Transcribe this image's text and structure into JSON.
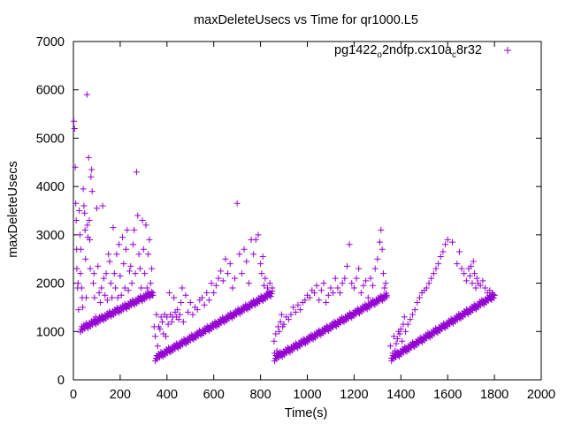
{
  "chart_data": {
    "type": "scatter",
    "title": "maxDeleteUsecs vs Time for qr1000.L5",
    "xlabel": "Time(s)",
    "ylabel": "maxDeleteUsecs",
    "xlim": [
      0,
      2000
    ],
    "ylim": [
      0,
      7000
    ],
    "xticks": [
      0,
      200,
      400,
      600,
      800,
      1000,
      1200,
      1400,
      1600,
      1800,
      2000
    ],
    "yticks": [
      0,
      1000,
      2000,
      3000,
      4000,
      5000,
      6000,
      7000
    ],
    "grid": false,
    "legend_position": "top-right",
    "series": [
      {
        "name_parts": {
          "a": "pg1422",
          "b": "o",
          "c": "2nofp.cx10a",
          "d": "c",
          "e": "8r32"
        },
        "name": "pg1422_o2nofp.cx10a_c8r32",
        "marker": "+",
        "color": "#9400d3",
        "points": [
          [
            2,
            5350
          ],
          [
            5,
            5200
          ],
          [
            8,
            4400
          ],
          [
            10,
            3650
          ],
          [
            12,
            3300
          ],
          [
            14,
            2700
          ],
          [
            15,
            2300
          ],
          [
            18,
            1900
          ],
          [
            20,
            2000
          ],
          [
            22,
            1450
          ],
          [
            25,
            3500
          ],
          [
            28,
            3000
          ],
          [
            30,
            2200
          ],
          [
            32,
            2700
          ],
          [
            35,
            1900
          ],
          [
            38,
            1700
          ],
          [
            40,
            1500
          ],
          [
            42,
            3950
          ],
          [
            45,
            3600
          ],
          [
            48,
            3450
          ],
          [
            50,
            3100
          ],
          [
            52,
            2500
          ],
          [
            55,
            1700
          ],
          [
            58,
            5900
          ],
          [
            60,
            3200
          ],
          [
            62,
            2950
          ],
          [
            65,
            4600
          ],
          [
            68,
            3300
          ],
          [
            70,
            2900
          ],
          [
            72,
            2300
          ],
          [
            75,
            4200
          ],
          [
            78,
            4350
          ],
          [
            80,
            3900
          ],
          [
            85,
            2000
          ],
          [
            88,
            2200
          ],
          [
            90,
            1700
          ],
          [
            95,
            1300
          ],
          [
            100,
            3550
          ],
          [
            105,
            2350
          ],
          [
            110,
            1800
          ],
          [
            115,
            1600
          ],
          [
            120,
            1900
          ],
          [
            125,
            3600
          ],
          [
            130,
            2100
          ],
          [
            135,
            1750
          ],
          [
            140,
            2200
          ],
          [
            145,
            1650
          ],
          [
            150,
            2600
          ],
          [
            155,
            2450
          ],
          [
            160,
            2000
          ],
          [
            165,
            1700
          ],
          [
            170,
            3150
          ],
          [
            175,
            2200
          ],
          [
            180,
            1900
          ],
          [
            185,
            2600
          ],
          [
            190,
            1700
          ],
          [
            195,
            2800
          ],
          [
            200,
            2150
          ],
          [
            205,
            1750
          ],
          [
            210,
            2950
          ],
          [
            215,
            2400
          ],
          [
            220,
            1900
          ],
          [
            225,
            2700
          ],
          [
            230,
            3100
          ],
          [
            235,
            1850
          ],
          [
            240,
            2250
          ],
          [
            245,
            2350
          ],
          [
            250,
            2000
          ],
          [
            255,
            2800
          ],
          [
            260,
            3100
          ],
          [
            265,
            2200
          ],
          [
            270,
            4300
          ],
          [
            275,
            3400
          ],
          [
            280,
            2600
          ],
          [
            285,
            2300
          ],
          [
            290,
            1900
          ],
          [
            295,
            3300
          ],
          [
            300,
            2700
          ],
          [
            305,
            2200
          ],
          [
            310,
            3200
          ],
          [
            315,
            1900
          ],
          [
            320,
            2600
          ],
          [
            325,
            2900
          ],
          [
            330,
            2000
          ],
          [
            335,
            2300
          ],
          [
            340,
            1800
          ],
          [
            340,
            1750
          ],
          [
            345,
            1100
          ],
          [
            350,
            900
          ],
          [
            355,
            1350
          ],
          [
            360,
            700
          ],
          [
            365,
            1100
          ],
          [
            370,
            1050
          ],
          [
            375,
            1300
          ],
          [
            380,
            1200
          ],
          [
            385,
            950
          ],
          [
            390,
            1350
          ],
          [
            395,
            900
          ],
          [
            400,
            1300
          ],
          [
            405,
            1150
          ],
          [
            410,
            1800
          ],
          [
            415,
            1350
          ],
          [
            420,
            1200
          ],
          [
            425,
            1300
          ],
          [
            430,
            1700
          ],
          [
            435,
            1400
          ],
          [
            440,
            1300
          ],
          [
            445,
            1450
          ],
          [
            450,
            1250
          ],
          [
            455,
            1350
          ],
          [
            460,
            1600
          ],
          [
            465,
            1900
          ],
          [
            470,
            1200
          ],
          [
            480,
            1750
          ],
          [
            490,
            1400
          ],
          [
            500,
            1600
          ],
          [
            510,
            1350
          ],
          [
            520,
            1500
          ],
          [
            530,
            1450
          ],
          [
            540,
            1650
          ],
          [
            550,
            1700
          ],
          [
            560,
            1550
          ],
          [
            570,
            1800
          ],
          [
            580,
            1650
          ],
          [
            590,
            2000
          ],
          [
            600,
            1800
          ],
          [
            610,
            1950
          ],
          [
            620,
            2100
          ],
          [
            630,
            2250
          ],
          [
            640,
            2050
          ],
          [
            650,
            2500
          ],
          [
            660,
            2200
          ],
          [
            670,
            2400
          ],
          [
            680,
            1900
          ],
          [
            690,
            2100
          ],
          [
            700,
            3650
          ],
          [
            710,
            2600
          ],
          [
            720,
            2200
          ],
          [
            730,
            2700
          ],
          [
            740,
            2450
          ],
          [
            750,
            2000
          ],
          [
            760,
            2900
          ],
          [
            770,
            2600
          ],
          [
            780,
            2900
          ],
          [
            790,
            3000
          ],
          [
            800,
            2400
          ],
          [
            805,
            2200
          ],
          [
            810,
            2550
          ],
          [
            815,
            1950
          ],
          [
            820,
            2100
          ],
          [
            830,
            1900
          ],
          [
            840,
            2000
          ],
          [
            850,
            1900
          ],
          [
            858,
            800
          ],
          [
            860,
            550
          ],
          [
            865,
            950
          ],
          [
            870,
            600
          ],
          [
            875,
            1100
          ],
          [
            880,
            1000
          ],
          [
            885,
            1200
          ],
          [
            890,
            1350
          ],
          [
            895,
            1100
          ],
          [
            900,
            1150
          ],
          [
            910,
            1300
          ],
          [
            920,
            1250
          ],
          [
            930,
            1350
          ],
          [
            940,
            1500
          ],
          [
            950,
            1400
          ],
          [
            960,
            1550
          ],
          [
            970,
            1450
          ],
          [
            980,
            1600
          ],
          [
            990,
            1650
          ],
          [
            1000,
            1750
          ],
          [
            1010,
            1700
          ],
          [
            1020,
            1850
          ],
          [
            1030,
            1800
          ],
          [
            1040,
            1950
          ],
          [
            1050,
            1650
          ],
          [
            1060,
            1850
          ],
          [
            1070,
            2000
          ],
          [
            1080,
            1600
          ],
          [
            1090,
            1750
          ],
          [
            1100,
            1900
          ],
          [
            1110,
            1800
          ],
          [
            1120,
            2100
          ],
          [
            1130,
            1900
          ],
          [
            1140,
            1800
          ],
          [
            1150,
            2000
          ],
          [
            1160,
            2100
          ],
          [
            1170,
            2350
          ],
          [
            1180,
            2800
          ],
          [
            1190,
            2000
          ],
          [
            1200,
            1900
          ],
          [
            1210,
            2100
          ],
          [
            1220,
            2300
          ],
          [
            1230,
            1800
          ],
          [
            1240,
            1950
          ],
          [
            1250,
            2050
          ],
          [
            1260,
            1700
          ],
          [
            1270,
            2100
          ],
          [
            1280,
            1950
          ],
          [
            1290,
            2300
          ],
          [
            1300,
            2500
          ],
          [
            1310,
            2850
          ],
          [
            1315,
            3100
          ],
          [
            1320,
            2700
          ],
          [
            1325,
            2200
          ],
          [
            1330,
            1900
          ],
          [
            1335,
            2000
          ],
          [
            1340,
            1750
          ],
          [
            1355,
            700
          ],
          [
            1360,
            450
          ],
          [
            1365,
            550
          ],
          [
            1370,
            900
          ],
          [
            1375,
            600
          ],
          [
            1380,
            750
          ],
          [
            1385,
            850
          ],
          [
            1390,
            1000
          ],
          [
            1395,
            950
          ],
          [
            1400,
            1050
          ],
          [
            1405,
            800
          ],
          [
            1410,
            1150
          ],
          [
            1415,
            1300
          ],
          [
            1420,
            1000
          ],
          [
            1430,
            1150
          ],
          [
            1440,
            1250
          ],
          [
            1450,
            1350
          ],
          [
            1460,
            1450
          ],
          [
            1470,
            1600
          ],
          [
            1480,
            1700
          ],
          [
            1490,
            1800
          ],
          [
            1500,
            1850
          ],
          [
            1510,
            1900
          ],
          [
            1520,
            2000
          ],
          [
            1530,
            2100
          ],
          [
            1540,
            2200
          ],
          [
            1550,
            2300
          ],
          [
            1560,
            2400
          ],
          [
            1570,
            2550
          ],
          [
            1580,
            2650
          ],
          [
            1590,
            2800
          ],
          [
            1600,
            2900
          ],
          [
            1620,
            2850
          ],
          [
            1640,
            2400
          ],
          [
            1650,
            2650
          ],
          [
            1660,
            2300
          ],
          [
            1670,
            2200
          ],
          [
            1680,
            2050
          ],
          [
            1690,
            2300
          ],
          [
            1695,
            2150
          ],
          [
            1700,
            2350
          ],
          [
            1705,
            2000
          ],
          [
            1710,
            2450
          ],
          [
            1715,
            2200
          ],
          [
            1720,
            1900
          ],
          [
            1725,
            2100
          ],
          [
            1730,
            2000
          ],
          [
            1740,
            1950
          ],
          [
            1750,
            2050
          ],
          [
            1760,
            1900
          ],
          [
            1770,
            1800
          ],
          [
            1780,
            1850
          ],
          [
            1790,
            1800
          ],
          [
            1800,
            1750
          ]
        ],
        "trend_segments": [
          {
            "x0": 30,
            "x1": 340,
            "y0": 1050,
            "y1": 1800
          },
          {
            "x0": 350,
            "x1": 850,
            "y0": 450,
            "y1": 1800
          },
          {
            "x0": 860,
            "x1": 1340,
            "y0": 450,
            "y1": 1750
          },
          {
            "x0": 1360,
            "x1": 1800,
            "y0": 450,
            "y1": 1750
          }
        ]
      }
    ]
  }
}
